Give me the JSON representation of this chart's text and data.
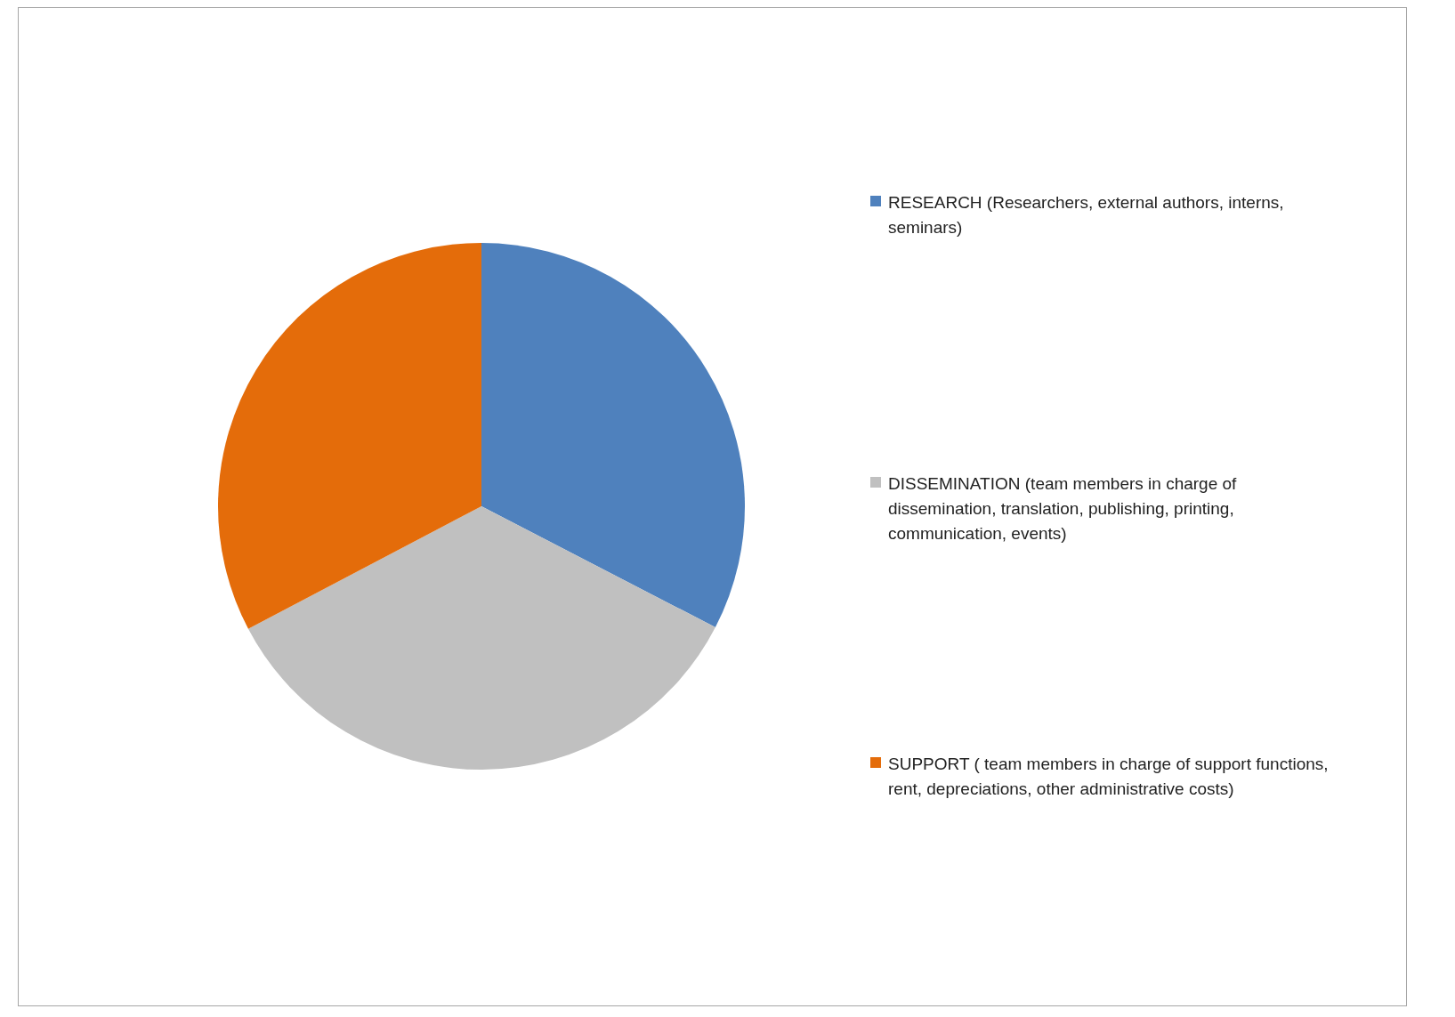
{
  "chart_data": {
    "type": "pie",
    "categories": [
      "RESEARCH (Researchers, external authors, interns, seminars)",
      "DISSEMINATION (team members in charge of dissemination, translation, publishing, printing, communication, events)",
      "SUPPORT ( team members in charge of support functions, rent, depreciations, other administrative costs)"
    ],
    "values": [
      32.6,
      34.7,
      32.7
    ],
    "colors": [
      "#4f81bd",
      "#c0c0c0",
      "#e46c0a"
    ],
    "legend": "right"
  }
}
